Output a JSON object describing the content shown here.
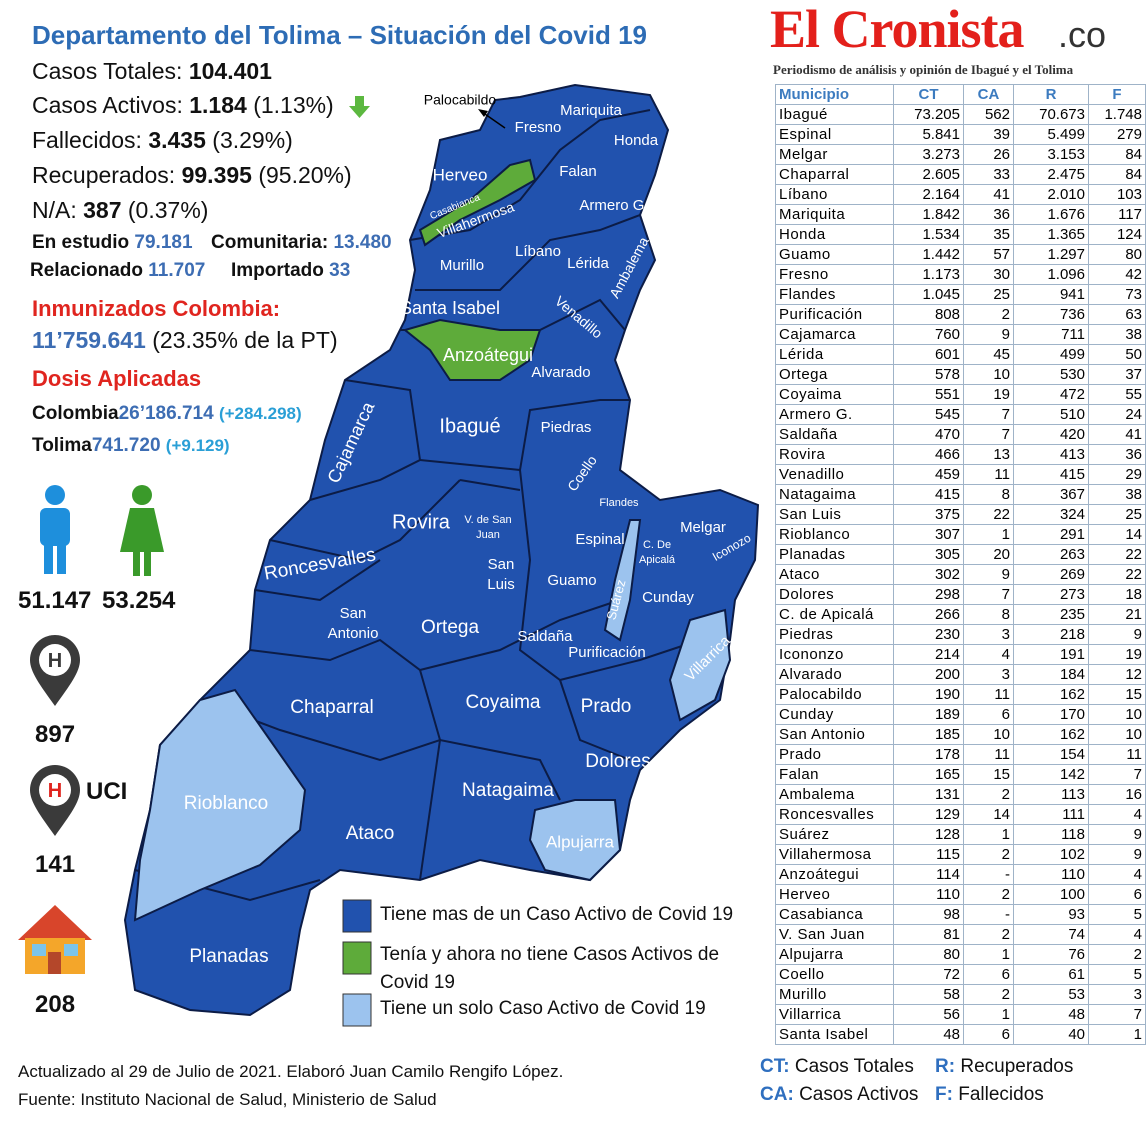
{
  "header": {
    "title": "Departamento del Tolima – Situación del Covid 19",
    "brand": "El Cronista",
    "brand_suffix": ".co",
    "tagline": "Periodismo de análisis y opinión de Ibagué y el Tolima"
  },
  "summary": [
    {
      "label": "Casos Totales:",
      "value": "104.401"
    },
    {
      "label": "Casos Activos:",
      "value": "1.184",
      "pct": "(1.13%)"
    },
    {
      "label": "Fallecidos:",
      "value": "3.435",
      "pct": "(3.29%)"
    },
    {
      "label": "Recuperados:",
      "value": "99.395",
      "pct": "(95.20%)"
    },
    {
      "label": "N/A:",
      "value": "387",
      "pct": "(0.37%)"
    }
  ],
  "origin": [
    {
      "label": "En estudio",
      "value": "79.181"
    },
    {
      "label": "Comunitaria:",
      "value": "13.480"
    },
    {
      "label": "Relacionado",
      "value": "11.707"
    },
    {
      "label": "Importado",
      "value": "33"
    }
  ],
  "immunized": {
    "title": "Inmunizados Colombia:",
    "value": "11’759.641",
    "note": "(23.35% de la PT)"
  },
  "doses": {
    "title": "Dosis Aplicadas",
    "rows": [
      {
        "label": "Colombia",
        "value": "26’186.714",
        "change": "(+284.298)"
      },
      {
        "label": "Tolima",
        "value": "741.720",
        "change": "(+9.129)"
      }
    ]
  },
  "gender": {
    "men": "51.147",
    "women": "53.254"
  },
  "hospital": {
    "beds": "897",
    "uci_label": "UCI",
    "uci": "141",
    "home": "208"
  },
  "map": {
    "labels": [
      "Palocabildo",
      "Mariquita",
      "Fresno",
      "Honda",
      "Herveo",
      "Falan",
      "Casabianca",
      "Armero G.",
      "Villahermosa",
      "Ambalema",
      "Líbano",
      "Murillo",
      "Lérida",
      "Santa Isabel",
      "Venadillo",
      "Anzoátegui",
      "Alvarado",
      "Cajamarca",
      "Ibagué",
      "Piedras",
      "Coello",
      "Rovira",
      "V. de San",
      "Juan",
      "Flandes",
      "Melgar",
      "Espinal",
      "C. De",
      "Apicalá",
      "Iconozo",
      "Roncesvalles",
      "San",
      "Luis",
      "Guamo",
      "Suárez",
      "Cunday",
      "San",
      "Antonio",
      "Ortega",
      "Saldaña",
      "Purificación",
      "Villarrica",
      "Chaparral",
      "Coyaima",
      "Prado",
      "Dolores",
      "Natagaima",
      "Rioblanco",
      "Ataco",
      "Alpujarra",
      "Planadas"
    ],
    "legend": [
      "Tiene mas de un Caso Activo de Covid 19",
      "Tenía y ahora no tiene Casos Activos de Covid 19",
      "Tiene un solo Caso Activo de Covid 19"
    ]
  },
  "table": {
    "columns": [
      "Municipio",
      "CT",
      "CA",
      "R",
      "F"
    ],
    "rows": [
      [
        "Ibagué",
        "73.205",
        "562",
        "70.673",
        "1.748"
      ],
      [
        "Espinal",
        "5.841",
        "39",
        "5.499",
        "279"
      ],
      [
        "Melgar",
        "3.273",
        "26",
        "3.153",
        "84"
      ],
      [
        "Chaparral",
        "2.605",
        "33",
        "2.475",
        "84"
      ],
      [
        "Líbano",
        "2.164",
        "41",
        "2.010",
        "103"
      ],
      [
        "Mariquita",
        "1.842",
        "36",
        "1.676",
        "117"
      ],
      [
        "Honda",
        "1.534",
        "35",
        "1.365",
        "124"
      ],
      [
        "Guamo",
        "1.442",
        "57",
        "1.297",
        "80"
      ],
      [
        "Fresno",
        "1.173",
        "30",
        "1.096",
        "42"
      ],
      [
        "Flandes",
        "1.045",
        "25",
        "941",
        "73"
      ],
      [
        "Purificación",
        "808",
        "2",
        "736",
        "63"
      ],
      [
        "Cajamarca",
        "760",
        "9",
        "711",
        "38"
      ],
      [
        "Lérida",
        "601",
        "45",
        "499",
        "50"
      ],
      [
        "Ortega",
        "578",
        "10",
        "530",
        "37"
      ],
      [
        "Coyaima",
        "551",
        "19",
        "472",
        "55"
      ],
      [
        "Armero G.",
        "545",
        "7",
        "510",
        "24"
      ],
      [
        "Saldaña",
        "470",
        "7",
        "420",
        "41"
      ],
      [
        "Rovira",
        "466",
        "13",
        "413",
        "36"
      ],
      [
        "Venadillo",
        "459",
        "11",
        "415",
        "29"
      ],
      [
        "Natagaima",
        "415",
        "8",
        "367",
        "38"
      ],
      [
        "San Luis",
        "375",
        "22",
        "324",
        "25"
      ],
      [
        "Rioblanco",
        "307",
        "1",
        "291",
        "14"
      ],
      [
        "Planadas",
        "305",
        "20",
        "263",
        "22"
      ],
      [
        "Ataco",
        "302",
        "9",
        "269",
        "22"
      ],
      [
        "Dolores",
        "298",
        "7",
        "273",
        "18"
      ],
      [
        "C. de Apicalá",
        "266",
        "8",
        "235",
        "21"
      ],
      [
        "Piedras",
        "230",
        "3",
        "218",
        "9"
      ],
      [
        "Icononzo",
        "214",
        "4",
        "191",
        "19"
      ],
      [
        "Alvarado",
        "200",
        "3",
        "184",
        "12"
      ],
      [
        "Palocabildo",
        "190",
        "11",
        "162",
        "15"
      ],
      [
        "Cunday",
        "189",
        "6",
        "170",
        "10"
      ],
      [
        "San Antonio",
        "185",
        "10",
        "162",
        "10"
      ],
      [
        "Prado",
        "178",
        "11",
        "154",
        "11"
      ],
      [
        "Falan",
        "165",
        "15",
        "142",
        "7"
      ],
      [
        "Ambalema",
        "131",
        "2",
        "113",
        "16"
      ],
      [
        "Roncesvalles",
        "129",
        "14",
        "111",
        "4"
      ],
      [
        "Suárez",
        "128",
        "1",
        "118",
        "9"
      ],
      [
        "Villahermosa",
        "115",
        "2",
        "102",
        "9"
      ],
      [
        "Anzoátegui",
        "114",
        "-",
        "110",
        "4"
      ],
      [
        "Herveo",
        "110",
        "2",
        "100",
        "6"
      ],
      [
        "Casabianca",
        "98",
        "-",
        "93",
        "5"
      ],
      [
        "V. San Juan",
        "81",
        "2",
        "74",
        "4"
      ],
      [
        "Alpujarra",
        "80",
        "1",
        "76",
        "2"
      ],
      [
        "Coello",
        "72",
        "6",
        "61",
        "5"
      ],
      [
        "Murillo",
        "58",
        "2",
        "53",
        "3"
      ],
      [
        "Villarrica",
        "56",
        "1",
        "48",
        "7"
      ],
      [
        "Santa Isabel",
        "48",
        "6",
        "40",
        "1"
      ]
    ]
  },
  "key": [
    {
      "abbr": "CT:",
      "text": "Casos Totales"
    },
    {
      "abbr": "R:",
      "text": "Recuperados"
    },
    {
      "abbr": "CA:",
      "text": "Casos Activos"
    },
    {
      "abbr": "F:",
      "text": "Fallecidos"
    }
  ],
  "footer": [
    "Actualizado al 29 de Julio de 2021. Elaboró Juan Camilo Rengifo López.",
    "Fuente: Instituto Nacional de Salud, Ministerio de Salud"
  ]
}
